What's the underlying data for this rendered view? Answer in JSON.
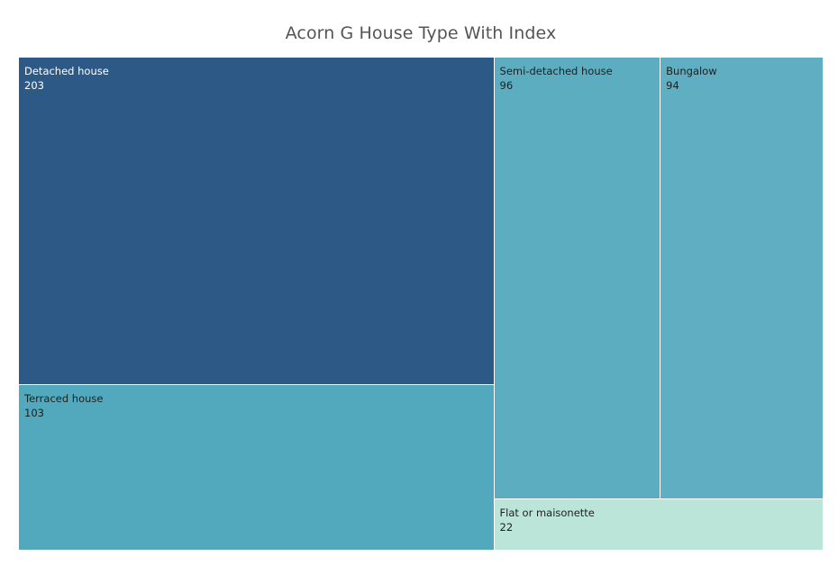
{
  "chart_data": {
    "type": "treemap",
    "title": "Acorn G House Type With Index",
    "items": [
      {
        "label": "Detached house",
        "value": 203,
        "color": "#2d5986",
        "text_color": "#ffffff"
      },
      {
        "label": "Terraced house",
        "value": 103,
        "color": "#52a9bd",
        "text_color": "#1f1f1f"
      },
      {
        "label": "Semi-detached house",
        "value": 96,
        "color": "#5dadc1",
        "text_color": "#1f1f1f"
      },
      {
        "label": "Bungalow",
        "value": 94,
        "color": "#5faec2",
        "text_color": "#1f1f1f"
      },
      {
        "label": "Flat or maisonette",
        "value": 22,
        "color": "#bce5d9",
        "text_color": "#1f1f1f"
      }
    ]
  }
}
